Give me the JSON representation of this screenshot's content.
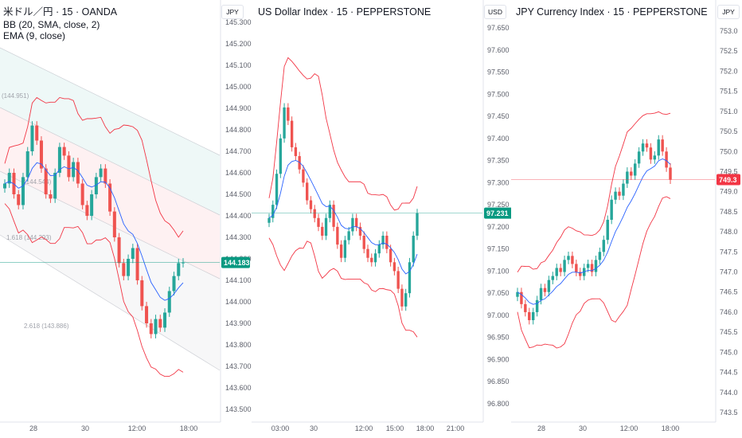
{
  "colors": {
    "up": "#26a69a",
    "down": "#ef5350",
    "bb": "#f23645",
    "ema": "#2962ff",
    "price_tag": "#089981",
    "price_tag_down": "#f23645"
  },
  "panels": [
    {
      "title": "米ドル／円 · 15 · OANDA",
      "indicators": [
        "BB (20, SMA, close, 2)",
        "EMA (9, close)"
      ],
      "currency": "JPY",
      "price_labels": [
        "145.300",
        "145.200",
        "145.100",
        "145.000",
        "144.900",
        "144.800",
        "144.700",
        "144.600",
        "144.500",
        "144.400",
        "144.300",
        "144.200",
        "144.100",
        "144.000",
        "143.900",
        "143.800",
        "143.700",
        "143.600",
        "143.500"
      ],
      "time_labels": [
        "28",
        "30",
        "12:00",
        "18:00"
      ],
      "last_price": "144.183",
      "fib_labels": [
        "(144.951)",
        "(144.544)",
        "1.618 (144.293)",
        "2.618 (143.886)"
      ]
    },
    {
      "title": "US Dollar Index · 15 · PEPPERSTONE",
      "currency": "USD",
      "price_labels": [
        "97.650",
        "97.600",
        "97.550",
        "97.500",
        "97.450",
        "97.400",
        "97.350",
        "97.300",
        "97.250",
        "97.200",
        "97.150",
        "97.100",
        "97.050",
        "97.000",
        "96.950",
        "96.900",
        "96.850",
        "96.800"
      ],
      "time_labels": [
        "03:00",
        "30",
        "12:00",
        "15:00",
        "18:00",
        "21:00"
      ],
      "last_price": "97.231"
    },
    {
      "title": "JPY Currency Index · 15 · PEPPERSTONE",
      "currency": "JPY",
      "price_labels": [
        "753.0",
        "752.5",
        "752.0",
        "751.5",
        "751.0",
        "750.5",
        "750.0",
        "749.5",
        "749.0",
        "748.5",
        "748.0",
        "747.5",
        "747.0",
        "746.5",
        "746.0",
        "745.5",
        "745.0",
        "744.5",
        "744.0",
        "743.5"
      ],
      "time_labels": [
        "28",
        "30",
        "12:00",
        "18:00"
      ],
      "last_price": "749.3"
    }
  ],
  "chart_data": [
    {
      "type": "candlestick",
      "title": "米ドル／円 · 15 · OANDA",
      "ylim": [
        143.47,
        145.33
      ],
      "x_ticks": [
        "28",
        "30",
        "12:00",
        "18:00"
      ],
      "series": [
        {
          "name": "BB (20, SMA, close, 2)"
        },
        {
          "name": "EMA (9, close)"
        }
      ],
      "closes": [
        144.55,
        144.6,
        144.5,
        144.45,
        144.58,
        144.7,
        144.82,
        144.75,
        144.62,
        144.5,
        144.48,
        144.6,
        144.72,
        144.68,
        144.58,
        144.65,
        144.55,
        144.45,
        144.4,
        144.5,
        144.58,
        144.62,
        144.55,
        144.42,
        144.3,
        144.18,
        144.12,
        144.2,
        144.25,
        144.1,
        143.98,
        143.9,
        143.85,
        143.92,
        143.88,
        143.95,
        144.05,
        144.12,
        144.18,
        144.183
      ],
      "last": 144.183
    },
    {
      "type": "candlestick",
      "title": "US Dollar Index · 15 · PEPPERSTONE",
      "ylim": [
        96.775,
        97.675
      ],
      "x_ticks": [
        "03:00",
        "30",
        "12:00",
        "15:00",
        "18:00",
        "21:00"
      ],
      "series": [
        {
          "name": "BB (20, SMA, close, 2)"
        },
        {
          "name": "EMA (9, close)"
        }
      ],
      "closes": [
        97.22,
        97.25,
        97.32,
        97.4,
        97.47,
        97.44,
        97.38,
        97.36,
        97.33,
        97.3,
        97.26,
        97.24,
        97.22,
        97.2,
        97.18,
        97.22,
        97.25,
        97.2,
        97.16,
        97.13,
        97.17,
        97.19,
        97.22,
        97.2,
        97.18,
        97.15,
        97.13,
        97.12,
        97.14,
        97.16,
        97.18,
        97.15,
        97.12,
        97.1,
        97.06,
        97.02,
        97.05,
        97.12,
        97.18,
        97.231
      ],
      "last": 97.231
    },
    {
      "type": "candlestick",
      "title": "JPY Currency Index · 15 · PEPPERSTONE",
      "ylim": [
        743.3,
        753.2
      ],
      "x_ticks": [
        "28",
        "30",
        "12:00",
        "18:00"
      ],
      "series": [
        {
          "name": "BB (20, SMA, close, 2)"
        },
        {
          "name": "EMA (9, close)"
        }
      ],
      "closes": [
        746.5,
        746.2,
        746.0,
        745.8,
        746.0,
        746.3,
        746.6,
        746.5,
        746.8,
        746.9,
        747.1,
        747.0,
        747.3,
        747.4,
        747.2,
        747.0,
        746.9,
        747.1,
        747.2,
        747.0,
        747.3,
        747.5,
        747.8,
        748.3,
        748.8,
        749.0,
        748.9,
        749.2,
        749.5,
        749.4,
        749.7,
        750.0,
        750.2,
        750.1,
        749.8,
        749.9,
        750.3,
        750.0,
        749.6,
        749.3
      ],
      "last": 749.3
    }
  ]
}
